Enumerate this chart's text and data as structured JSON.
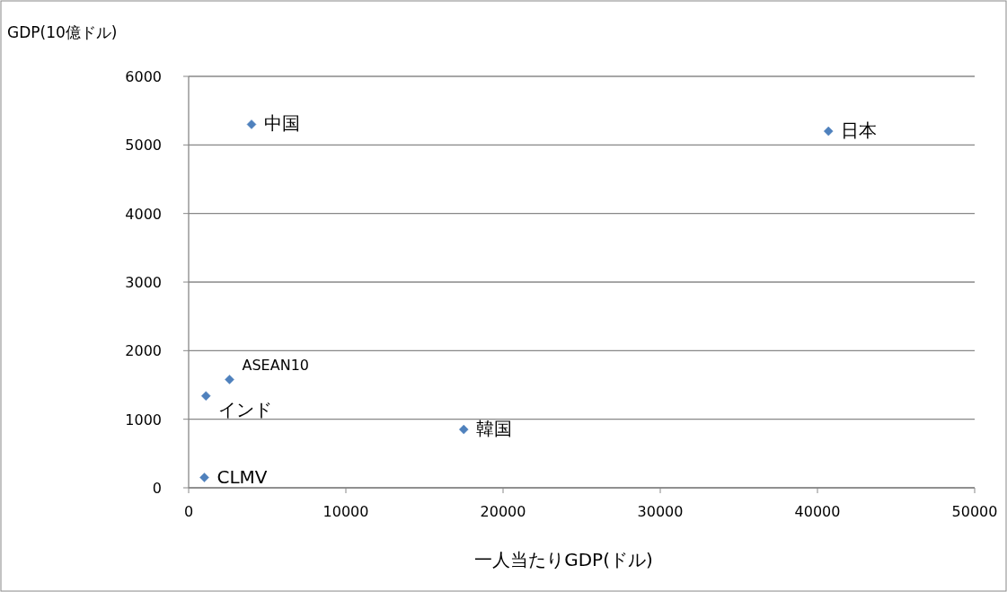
{
  "chart_data": {
    "type": "scatter",
    "xlabel": "一人当たりGDP(ドル)",
    "ylabel": "GDP(10億ドル)",
    "x": [
      4000,
      40700,
      2600,
      1100,
      17500,
      1000
    ],
    "values": [
      5300,
      5200,
      1580,
      1340,
      850,
      150
    ],
    "color": "#4f81bd",
    "marker": "diamond",
    "annotations": [
      {
        "text": "中国",
        "x": 4000,
        "y": 5300
      },
      {
        "text": "日本",
        "x": 40700,
        "y": 5200
      },
      {
        "text": "ASEAN10",
        "x": 2600,
        "y": 1580
      },
      {
        "text": "インド",
        "x": 1100,
        "y": 1340
      },
      {
        "text": "韓国",
        "x": 17500,
        "y": 850
      },
      {
        "text": "CLMV",
        "x": 1000,
        "y": 150
      }
    ],
    "xlim": [
      0,
      50000
    ],
    "xticks": [
      0,
      10000,
      20000,
      30000,
      40000,
      50000
    ],
    "ylim": [
      0,
      6000
    ],
    "yticks": [
      0,
      1000,
      2000,
      3000,
      4000,
      5000,
      6000
    ],
    "grid": "y"
  }
}
